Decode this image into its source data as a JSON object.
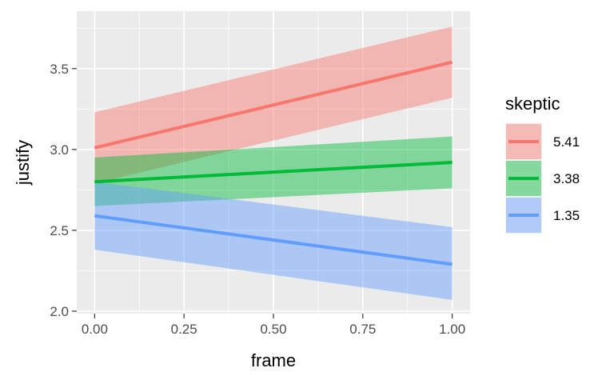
{
  "chart_data": {
    "type": "line",
    "xlabel": "frame",
    "ylabel": "justify",
    "xlim": [
      -0.05,
      1.05
    ],
    "ylim": [
      1.985,
      3.855
    ],
    "x_ticks": [
      0.0,
      0.25,
      0.5,
      0.75,
      1.0
    ],
    "x_tick_labels": [
      "0.00",
      "0.25",
      "0.50",
      "0.75",
      "1.00"
    ],
    "y_ticks": [
      2.0,
      2.5,
      3.0,
      3.5
    ],
    "y_tick_labels": [
      "2.0",
      "2.5",
      "3.0",
      "3.5"
    ],
    "grid": true,
    "legend": {
      "title": "skeptic",
      "position": "right"
    },
    "series": [
      {
        "name": "5.41",
        "color": "#F8766D",
        "x": [
          0,
          1
        ],
        "fit": [
          3.01,
          3.54
        ],
        "lower": [
          2.79,
          3.32
        ],
        "upper": [
          3.23,
          3.76
        ]
      },
      {
        "name": "3.38",
        "color": "#00BA38",
        "x": [
          0,
          1
        ],
        "fit": [
          2.8,
          2.92
        ],
        "lower": [
          2.65,
          2.76
        ],
        "upper": [
          2.95,
          3.08
        ]
      },
      {
        "name": "1.35",
        "color": "#619CFF",
        "x": [
          0,
          1
        ],
        "fit": [
          2.59,
          2.29
        ],
        "lower": [
          2.38,
          2.07
        ],
        "upper": [
          2.8,
          2.52
        ]
      }
    ]
  }
}
